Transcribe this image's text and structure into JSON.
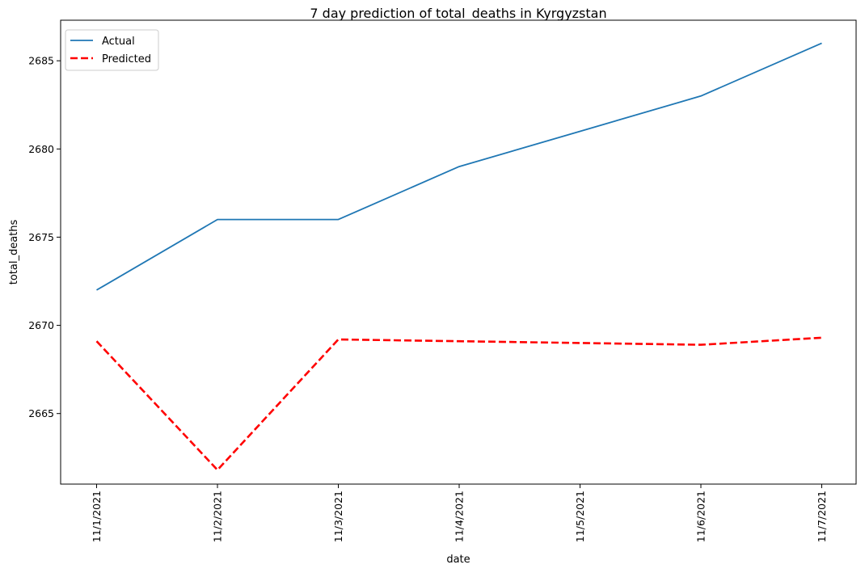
{
  "chart_data": {
    "type": "line",
    "title": "7 day prediction of total_deaths in Kyrgyzstan",
    "xlabel": "date",
    "ylabel": "total_deaths",
    "categories": [
      "11/1/2021",
      "11/2/2021",
      "11/3/2021",
      "11/4/2021",
      "11/5/2021",
      "11/6/2021",
      "11/7/2021"
    ],
    "ylim": [
      2661,
      2687.3
    ],
    "yticks": [
      2665,
      2670,
      2675,
      2680,
      2685
    ],
    "grid": false,
    "legend_position": "upper-left",
    "series": [
      {
        "name": "Actual",
        "values": [
          2672,
          2676,
          2676,
          2679,
          2681,
          2683,
          2686
        ],
        "color": "#1f77b4",
        "style": "solid"
      },
      {
        "name": "Predicted",
        "values": [
          2669.1,
          2661.8,
          2669.2,
          2669.1,
          2669.0,
          2668.9,
          2669.3
        ],
        "color": "#ff0000",
        "style": "dashed"
      }
    ]
  }
}
